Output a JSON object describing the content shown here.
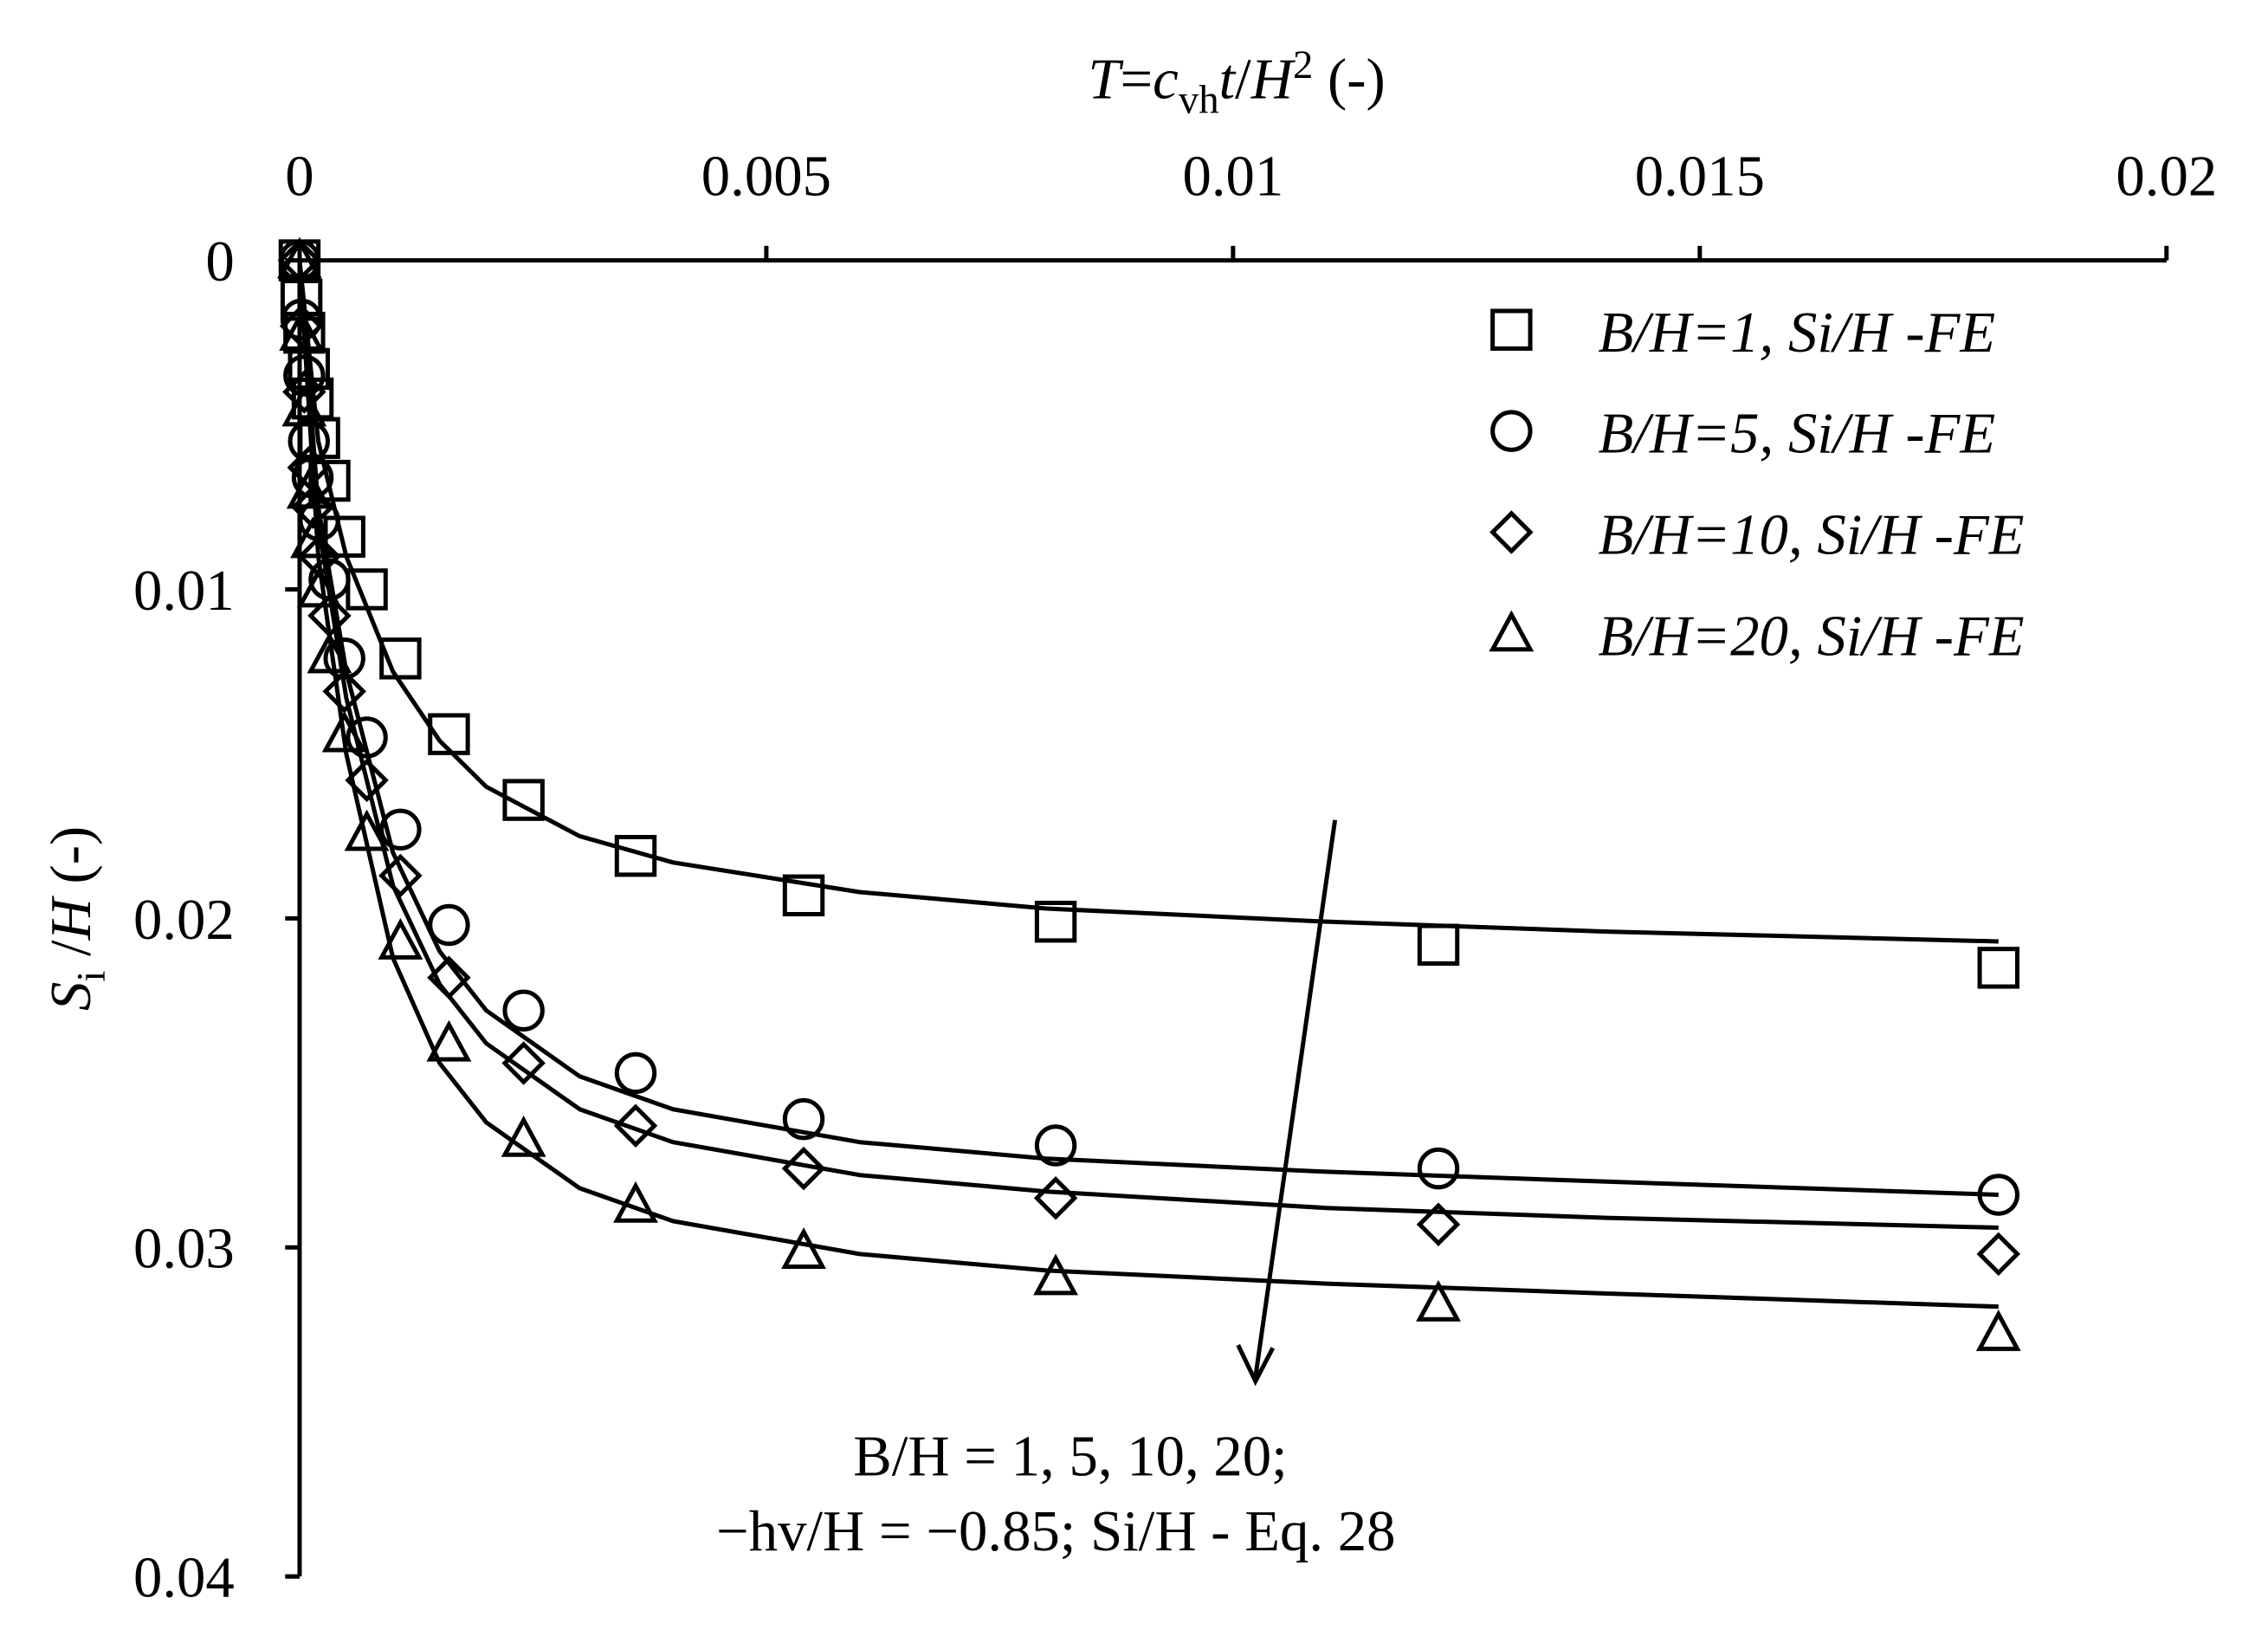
{
  "chart_data": {
    "type": "scatter",
    "x_label": [
      "T",
      "=",
      "c",
      "vh",
      "t",
      "/",
      "H",
      "2",
      " (-)"
    ],
    "y_label": [
      "S",
      "i",
      " /",
      "H",
      " (-)"
    ],
    "annotation": [
      "B/H = 1, 5, 10, 20;",
      "−hv/H = −0.85; Si/H - Eq. 28"
    ],
    "x": [
      0,
      2e-05,
      5e-05,
      0.0001,
      0.00014,
      0.00021,
      0.00032,
      0.00048,
      0.00072,
      0.00108,
      0.0016,
      0.0024,
      0.0036,
      0.0054,
      0.0081,
      0.0122,
      0.0182
    ],
    "fit_x": [
      0,
      0.0002,
      0.0005,
      0.001,
      0.0015,
      0.002,
      0.003,
      0.004,
      0.006,
      0.008,
      0.011,
      0.014,
      0.0182
    ],
    "series": [
      {
        "name": "B/H=1, Si/H -FE",
        "marker": "square",
        "color": "#000000",
        "values": [
          0,
          0.0012,
          0.0022,
          0.0033,
          0.0042,
          0.0054,
          0.0067,
          0.0084,
          0.01,
          0.0121,
          0.0144,
          0.0164,
          0.0181,
          0.0193,
          0.0201,
          0.0208,
          0.0215
        ],
        "fit_values": [
          0,
          0.0055,
          0.009,
          0.0125,
          0.0146,
          0.016,
          0.0175,
          0.0183,
          0.0192,
          0.0197,
          0.0201,
          0.0204,
          0.0207
        ]
      },
      {
        "name": "B/H=5, Si/H -FE",
        "marker": "circle",
        "color": "#000000",
        "values": [
          0,
          0.0018,
          0.0035,
          0.0055,
          0.0066,
          0.0079,
          0.0097,
          0.0121,
          0.0145,
          0.0173,
          0.0202,
          0.0228,
          0.0247,
          0.0261,
          0.0269,
          0.0276,
          0.0284
        ],
        "fit_values": [
          0,
          0.0075,
          0.0125,
          0.018,
          0.021,
          0.0228,
          0.0248,
          0.0258,
          0.0268,
          0.0273,
          0.0277,
          0.028,
          0.0284
        ]
      },
      {
        "name": "B/H=10, Si/H -FE",
        "marker": "diamond",
        "color": "#000000",
        "values": [
          0,
          0.002,
          0.004,
          0.0063,
          0.0075,
          0.009,
          0.0108,
          0.0131,
          0.0158,
          0.0187,
          0.0218,
          0.0244,
          0.0263,
          0.0276,
          0.0285,
          0.0293,
          0.0302
        ],
        "fit_values": [
          0,
          0.008,
          0.0133,
          0.019,
          0.022,
          0.0238,
          0.0258,
          0.0268,
          0.0278,
          0.0283,
          0.0288,
          0.0291,
          0.0294
        ]
      },
      {
        "name": "B/H=20, Si/H -FE",
        "marker": "triangle",
        "color": "#000000",
        "values": [
          0,
          0.0022,
          0.0045,
          0.007,
          0.0085,
          0.01,
          0.012,
          0.0144,
          0.0174,
          0.0207,
          0.0238,
          0.0267,
          0.0287,
          0.0301,
          0.0309,
          0.0317,
          0.0326
        ],
        "fit_values": [
          0,
          0.009,
          0.015,
          0.0212,
          0.0244,
          0.0262,
          0.0282,
          0.0292,
          0.0302,
          0.0307,
          0.0311,
          0.0314,
          0.0318
        ]
      }
    ],
    "xlim": [
      0,
      0.02
    ],
    "xticks": [
      0,
      0.005,
      0.01,
      0.015,
      0.02
    ],
    "ylim": [
      0,
      0.04
    ],
    "yticks": [
      0,
      0.01,
      0.02,
      0.03,
      0.04
    ],
    "y_inverted": true,
    "x_axis_position": "top",
    "legend": "upper right"
  }
}
